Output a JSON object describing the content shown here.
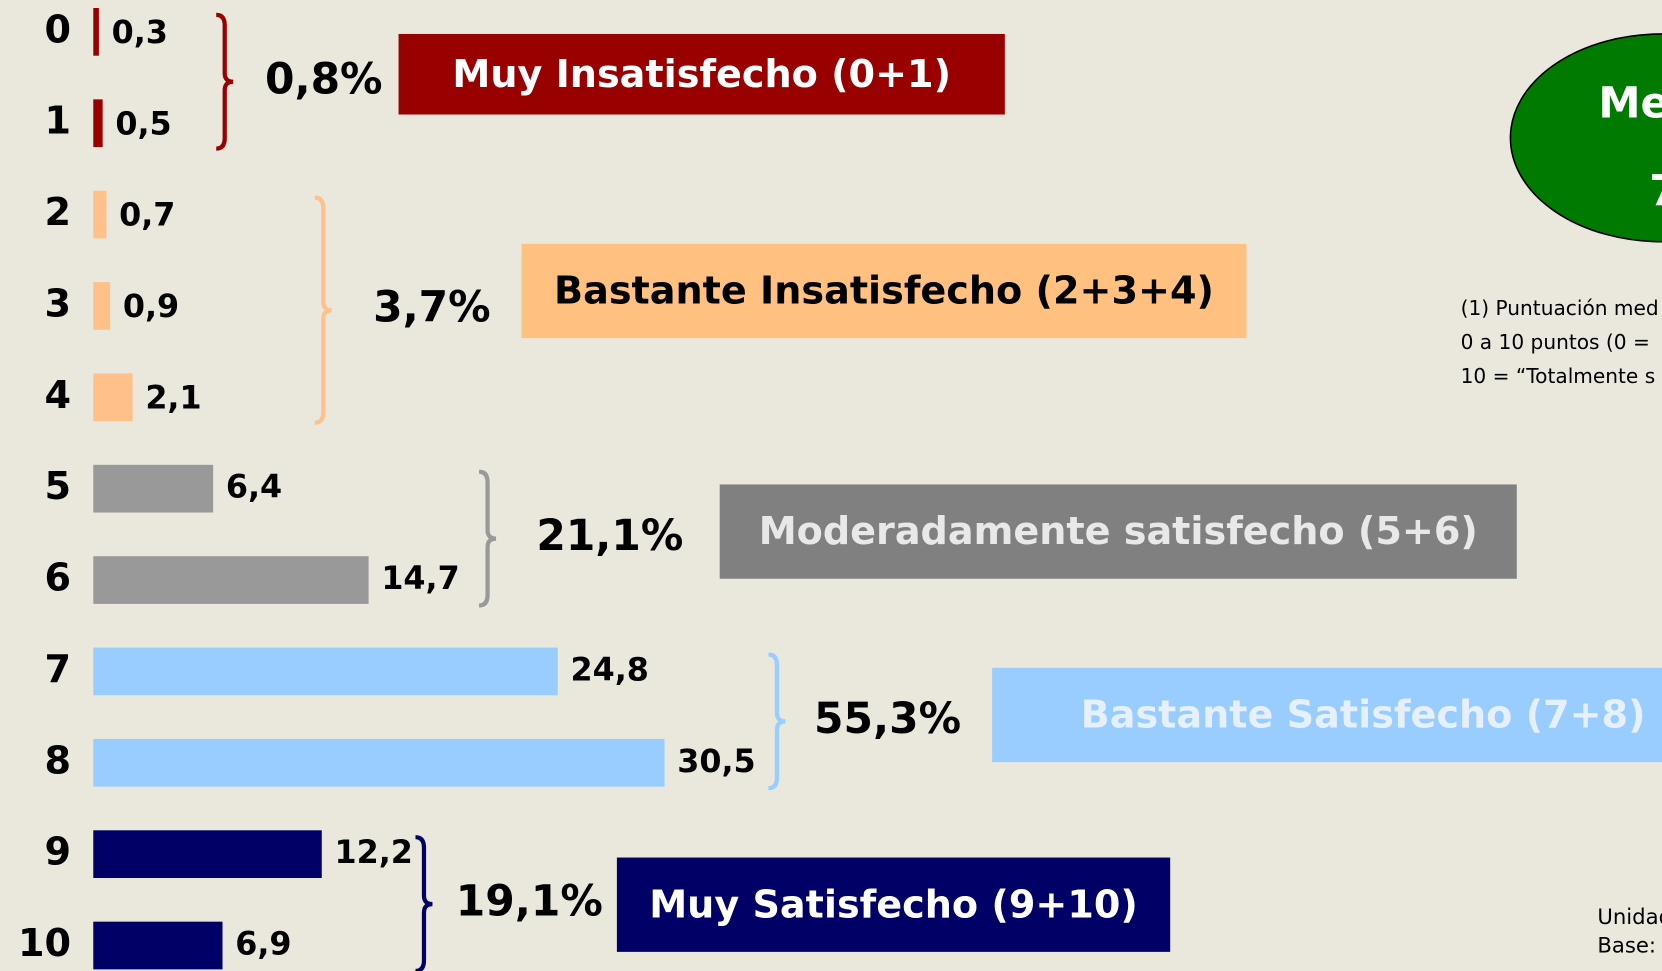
{
  "chart_data": {
    "type": "bar",
    "orientation": "horizontal",
    "groups": [
      {
        "name": "Muy Insatisfecho (0+1)",
        "total": 0.8,
        "total_label": "0,8%",
        "color": "#990000",
        "box_color": "#990000",
        "box_text_color": "#ffffff",
        "categories": [
          "0",
          "1"
        ],
        "values": [
          0.3,
          0.5
        ],
        "value_labels": [
          "0,3",
          "0,5"
        ]
      },
      {
        "name": "Bastante Insatisfecho (2+3+4)",
        "total": 3.7,
        "total_label": "3,7%",
        "color": "#ffc08a",
        "box_color": "#ffc080",
        "box_text_color": "#000000",
        "categories": [
          "2",
          "3",
          "4"
        ],
        "values": [
          0.7,
          0.9,
          2.1
        ],
        "value_labels": [
          "0,7",
          "0,9",
          "2,1"
        ]
      },
      {
        "name": "Moderadamente satisfecho (5+6)",
        "total": 21.1,
        "total_label": "21,1%",
        "color": "#999999",
        "box_color": "#808080",
        "box_text_color": "#e8e8e8",
        "categories": [
          "5",
          "6"
        ],
        "values": [
          6.4,
          14.7
        ],
        "value_labels": [
          "6,4",
          "14,7"
        ]
      },
      {
        "name": "Bastante Satisfecho (7+8)",
        "total": 55.3,
        "total_label": "55,3%",
        "color": "#99ccff",
        "box_color": "#99ccff",
        "box_text_color": "#e6f0fa",
        "categories": [
          "7",
          "8"
        ],
        "values": [
          24.8,
          30.5
        ],
        "value_labels": [
          "24,8",
          "30,5"
        ]
      },
      {
        "name": "Muy Satisfecho (9+10)",
        "total": 19.1,
        "total_label": "19,1%",
        "color": "#000066",
        "box_color": "#000066",
        "box_text_color": "#ffffff",
        "categories": [
          "9",
          "10"
        ],
        "values": [
          12.2,
          6.9
        ],
        "value_labels": [
          "12,2",
          "6,9"
        ]
      }
    ],
    "ellipse_text": [
      "Me",
      "7"
    ],
    "ellipse_color": "#007a00",
    "notes": [
      "(1) Puntuación med",
      "0 a 10 puntos (0 =",
      "10 = “Totalmente s"
    ],
    "footer": [
      "Unidad",
      "Base:"
    ]
  }
}
